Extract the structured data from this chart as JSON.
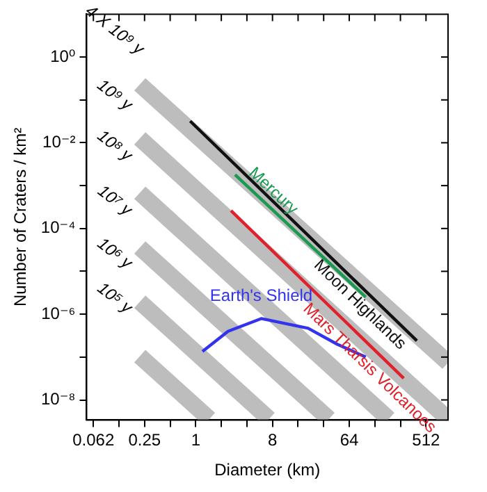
{
  "chart_data": {
    "type": "line",
    "xlabel": "Diameter (km)",
    "ylabel": "Number of Craters / km²",
    "log": "xy",
    "legend": false,
    "grid": false,
    "xlim": [
      0.052,
      930
    ],
    "ylim": [
      3.4e-09,
      10
    ],
    "xticks": [
      {
        "value": 0.0625,
        "label": "0.062"
      },
      {
        "value": 0.125,
        "label": null
      },
      {
        "value": 0.25,
        "label": "0.25"
      },
      {
        "value": 0.5,
        "label": null
      },
      {
        "value": 1,
        "label": "1"
      },
      {
        "value": 2,
        "label": null
      },
      {
        "value": 4,
        "label": null
      },
      {
        "value": 8,
        "label": "8"
      },
      {
        "value": 16,
        "label": null
      },
      {
        "value": 32,
        "label": null
      },
      {
        "value": 64,
        "label": "64"
      },
      {
        "value": 128,
        "label": null
      },
      {
        "value": 256,
        "label": null
      },
      {
        "value": 512,
        "label": "512"
      }
    ],
    "yticks": [
      {
        "value": 1,
        "label": "10⁰"
      },
      {
        "value": 0.1,
        "label": null
      },
      {
        "value": 0.01,
        "label": "10⁻²"
      },
      {
        "value": 0.001,
        "label": null
      },
      {
        "value": 0.0001,
        "label": "10⁻⁴"
      },
      {
        "value": 1e-05,
        "label": null
      },
      {
        "value": 1e-06,
        "label": "10⁻⁶"
      },
      {
        "value": 1e-07,
        "label": null
      },
      {
        "value": 1e-08,
        "label": "10⁻⁸"
      }
    ],
    "series": [
      {
        "color": "#bdbdbd",
        "x": [
          0.22,
          930
        ],
        "values": [
          0.23,
          7.4e-08
        ]
      },
      {
        "color": "#bdbdbd",
        "x": [
          0.22,
          930
        ],
        "values": [
          0.0126,
          3.6e-09
        ]
      },
      {
        "color": "#bdbdbd",
        "x": [
          0.22,
          187
        ],
        "values": [
          0.00068,
          3.6e-09
        ]
      },
      {
        "color": "#bdbdbd",
        "x": [
          0.22,
          37
        ],
        "values": [
          3.6e-05,
          3.6e-09
        ]
      },
      {
        "color": "#bdbdbd",
        "x": [
          0.22,
          7.3
        ],
        "values": [
          1.95e-06,
          3.6e-09
        ]
      },
      {
        "color": "#bdbdbd",
        "x": [
          0.22,
          1.45
        ],
        "values": [
          1.05e-07,
          3.6e-09
        ]
      },
      {
        "name": "Moon Highlands",
        "color": "#111111",
        "x": [
          0.86,
          400
        ],
        "values": [
          0.032,
          2.4e-07
        ]
      },
      {
        "name": "Mercury",
        "color": "#1a9a50",
        "x": [
          2.9,
          100
        ],
        "values": [
          0.0018,
          2.5e-06
        ]
      },
      {
        "name": "Mars Tharsis Volcanoes",
        "color": "#e0202a",
        "x": [
          2.6,
          280
        ],
        "values": [
          0.00026,
          3.2e-08
        ]
      },
      {
        "name": "Earth's Shield",
        "color": "#3333ee",
        "x": [
          1.2,
          2.4,
          5.9,
          21,
          46,
          100
        ],
        "values": [
          1.35e-07,
          4e-07,
          7.9e-07,
          4.7e-07,
          2e-07,
          1e-07
        ]
      }
    ],
    "annotations": [
      "4 X 10⁹ y",
      "10⁹ y",
      "10⁸ y",
      "10⁷ y",
      "10⁶ y",
      "10⁵ y"
    ]
  }
}
